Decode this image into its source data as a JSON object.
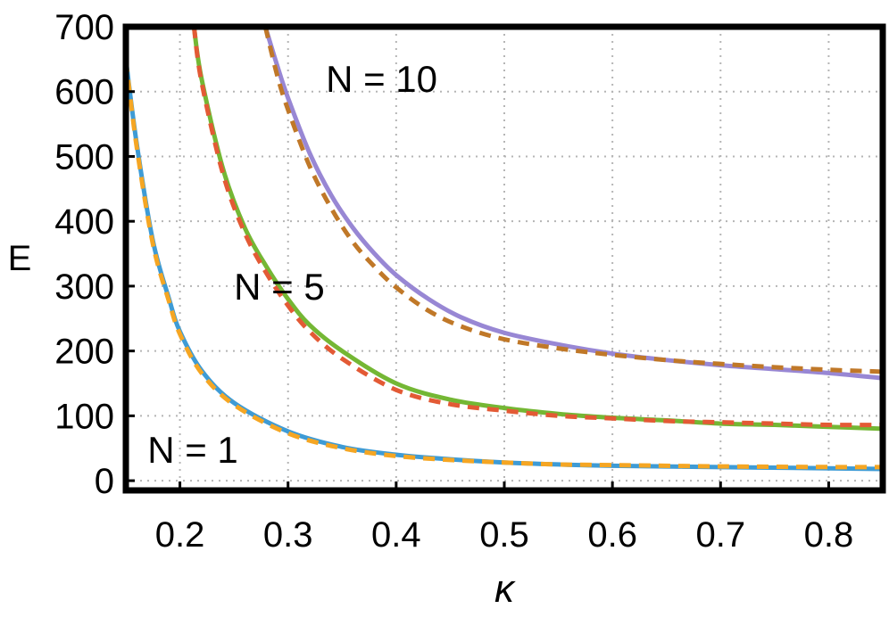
{
  "chart_data": {
    "type": "line",
    "xlabel": "κ",
    "ylabel": "E",
    "xlim": [
      0.15,
      0.85
    ],
    "ylim": [
      -15,
      700
    ],
    "xticks": [
      0.2,
      0.3,
      0.4,
      0.5,
      0.6,
      0.7,
      0.8
    ],
    "xtick_labels": [
      "0.2",
      "0.3",
      "0.4",
      "0.5",
      "0.6",
      "0.7",
      "0.8"
    ],
    "yticks": [
      0,
      100,
      200,
      300,
      400,
      500,
      600,
      700
    ],
    "ytick_labels": [
      "0",
      "100",
      "200",
      "300",
      "400",
      "500",
      "600",
      "700"
    ],
    "grid": true,
    "grid_style": "dotted",
    "series": [
      {
        "color": "#3e9bd5",
        "style": "solid",
        "x": [
          0.15,
          0.16,
          0.175,
          0.19,
          0.2,
          0.22,
          0.25,
          0.3,
          0.35,
          0.4,
          0.45,
          0.5,
          0.55,
          0.6,
          0.7,
          0.8,
          0.85
        ],
        "y": [
          650,
          520,
          370,
          280,
          230,
          170,
          120,
          76,
          52,
          40,
          33,
          28,
          25,
          23,
          21,
          19,
          18
        ]
      },
      {
        "color": "#f5a623",
        "style": "dashed",
        "x": [
          0.15,
          0.16,
          0.175,
          0.19,
          0.2,
          0.22,
          0.25,
          0.3,
          0.35,
          0.4,
          0.45,
          0.5,
          0.55,
          0.6,
          0.7,
          0.8,
          0.85
        ],
        "y": [
          648,
          515,
          365,
          276,
          226,
          166,
          117,
          73,
          50,
          38,
          32,
          28,
          25,
          24,
          22,
          21,
          21
        ]
      },
      {
        "color": "#74b734",
        "style": "solid",
        "x": [
          0.213,
          0.22,
          0.24,
          0.26,
          0.28,
          0.3,
          0.32,
          0.35,
          0.4,
          0.45,
          0.5,
          0.55,
          0.6,
          0.65,
          0.7,
          0.75,
          0.8,
          0.85
        ],
        "y": [
          700,
          620,
          480,
          390,
          330,
          280,
          240,
          200,
          150,
          125,
          112,
          103,
          97,
          93,
          88,
          86,
          83,
          80
        ]
      },
      {
        "color": "#e35a35",
        "style": "dashed",
        "x": [
          0.213,
          0.22,
          0.24,
          0.26,
          0.28,
          0.3,
          0.32,
          0.35,
          0.4,
          0.45,
          0.5,
          0.55,
          0.6,
          0.65,
          0.7,
          0.75,
          0.8,
          0.85
        ],
        "y": [
          700,
          615,
          472,
          382,
          320,
          270,
          230,
          188,
          140,
          118,
          108,
          100,
          96,
          92,
          90,
          88,
          86,
          86
        ]
      },
      {
        "color": "#9887d4",
        "style": "solid",
        "x": [
          0.279,
          0.29,
          0.3,
          0.32,
          0.34,
          0.36,
          0.38,
          0.4,
          0.43,
          0.46,
          0.5,
          0.55,
          0.6,
          0.65,
          0.7,
          0.75,
          0.8,
          0.85
        ],
        "y": [
          700,
          640,
          590,
          505,
          440,
          390,
          350,
          317,
          280,
          252,
          228,
          210,
          196,
          186,
          178,
          172,
          166,
          158
        ]
      },
      {
        "color": "#c07828",
        "style": "dashed",
        "x": [
          0.279,
          0.29,
          0.3,
          0.32,
          0.34,
          0.36,
          0.38,
          0.4,
          0.43,
          0.46,
          0.5,
          0.55,
          0.6,
          0.65,
          0.7,
          0.75,
          0.8,
          0.85
        ],
        "y": [
          700,
          625,
          572,
          485,
          420,
          368,
          330,
          298,
          262,
          238,
          218,
          204,
          194,
          186,
          180,
          175,
          171,
          168
        ]
      }
    ],
    "annotations": [
      {
        "text": "N = 10",
        "x": 0.335,
        "y": 620
      },
      {
        "text": "N = 5",
        "x": 0.25,
        "y": 300
      },
      {
        "text": "N = 1",
        "x": 0.17,
        "y": 48
      }
    ]
  }
}
